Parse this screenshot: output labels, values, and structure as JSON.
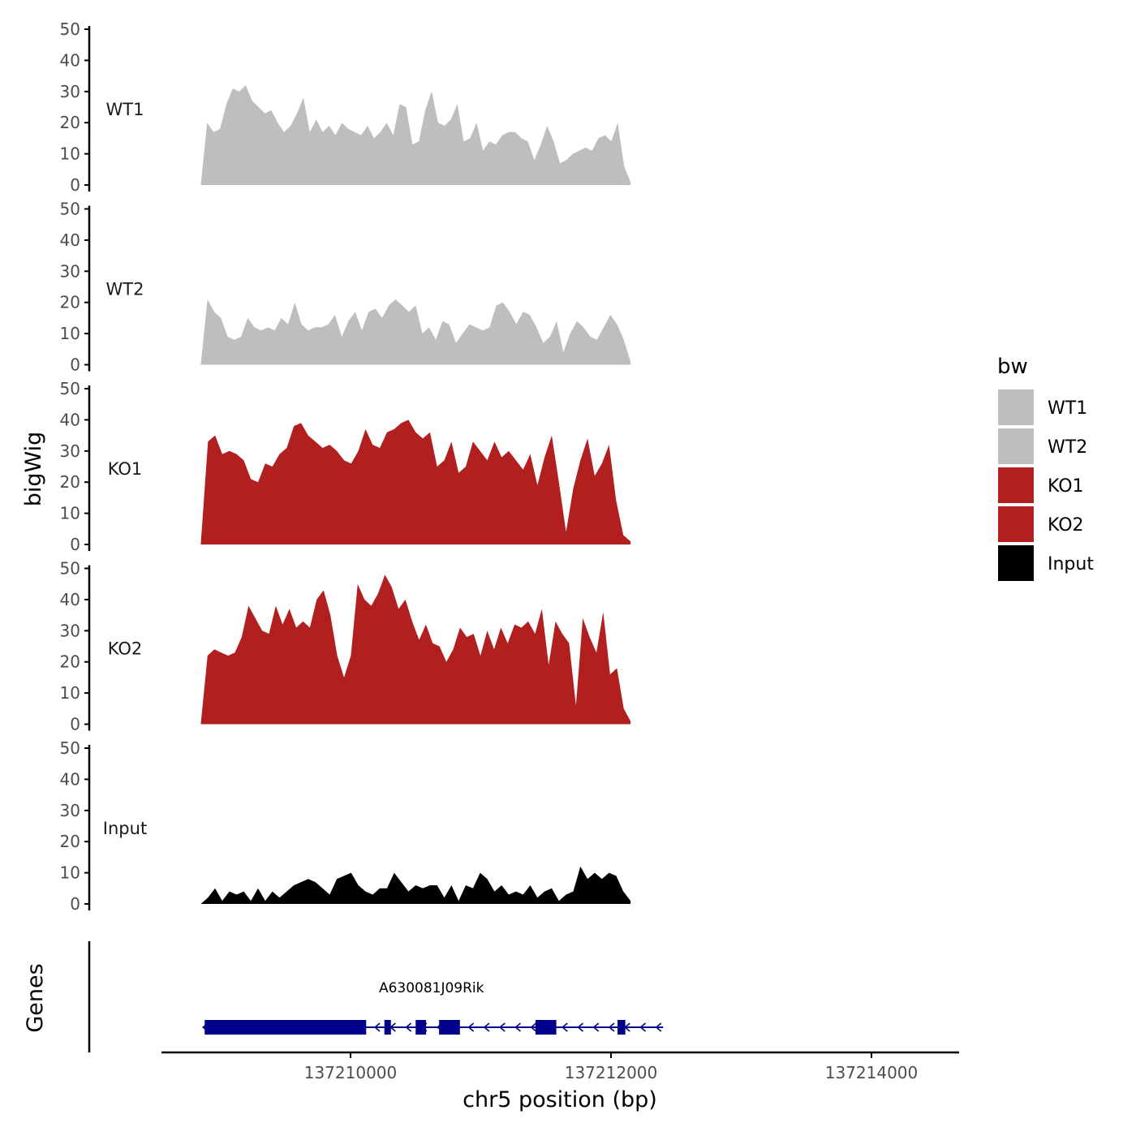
{
  "chart_data": {
    "type": "area",
    "ylabel": "bigWig",
    "genes_label": "Genes",
    "xlabel": "chr5 position (bp)",
    "x_ticks": [
      137210000,
      137212000,
      137214000
    ],
    "xlim": [
      137208500,
      137214500
    ],
    "ylim": [
      0,
      50
    ],
    "y_ticks": [
      0,
      10,
      20,
      30,
      40,
      50
    ],
    "x_range_data": [
      137208850,
      137212150
    ],
    "legend": {
      "title": "bw",
      "position": "right",
      "entries": [
        {
          "label": "WT1",
          "color": "#bebebe"
        },
        {
          "label": "WT2",
          "color": "#bebebe"
        },
        {
          "label": "KO1",
          "color": "#b21f1f"
        },
        {
          "label": "KO2",
          "color": "#b21f1f"
        },
        {
          "label": "Input",
          "color": "#000000"
        }
      ]
    },
    "series": [
      {
        "name": "WT1",
        "color": "#bebebe",
        "values": [
          0,
          20,
          17,
          18,
          26,
          31,
          30,
          32,
          27,
          25,
          23,
          24,
          20,
          17,
          19,
          23,
          28,
          17,
          21,
          17,
          19,
          16,
          20,
          18,
          17,
          16,
          19,
          15,
          17,
          20,
          16,
          26,
          25,
          13,
          14,
          24,
          30,
          20,
          19,
          21,
          26,
          14,
          15,
          20,
          11,
          14,
          13,
          16,
          17,
          17,
          15,
          14,
          8,
          13,
          19,
          14,
          7,
          8,
          10,
          11,
          12,
          11,
          15,
          16,
          14,
          20,
          6,
          1
        ]
      },
      {
        "name": "WT2",
        "color": "#bebebe",
        "values": [
          0,
          21,
          17,
          15,
          9,
          8,
          9,
          15,
          12,
          11,
          12,
          11,
          15,
          13,
          20,
          13,
          11,
          12,
          12,
          13,
          16,
          9,
          14,
          17,
          11,
          17,
          18,
          15,
          19,
          21,
          19,
          17,
          19,
          10,
          12,
          8,
          14,
          13,
          7,
          10,
          13,
          12,
          11,
          12,
          19,
          20,
          17,
          13,
          17,
          16,
          12,
          7,
          9,
          14,
          4,
          10,
          14,
          12,
          9,
          8,
          12,
          16,
          13,
          8,
          1
        ]
      },
      {
        "name": "KO1",
        "color": "#b21f1f",
        "values": [
          0,
          33,
          35,
          29,
          30,
          29,
          27,
          21,
          20,
          26,
          25,
          29,
          31,
          38,
          39,
          35,
          33,
          31,
          32,
          30,
          27,
          26,
          30,
          37,
          32,
          31,
          36,
          37,
          39,
          40,
          36,
          34,
          36,
          25,
          27,
          33,
          23,
          25,
          33,
          30,
          27,
          33,
          28,
          30,
          27,
          24,
          29,
          19,
          28,
          35,
          20,
          4,
          18,
          27,
          34,
          22,
          26,
          32,
          14,
          3,
          1
        ]
      },
      {
        "name": "KO2",
        "color": "#b21f1f",
        "values": [
          0,
          22,
          24,
          23,
          22,
          23,
          28,
          38,
          34,
          30,
          29,
          38,
          32,
          37,
          31,
          33,
          31,
          40,
          43,
          35,
          22,
          15,
          22,
          45,
          40,
          38,
          42,
          48,
          44,
          37,
          40,
          33,
          27,
          32,
          26,
          25,
          20,
          24,
          31,
          28,
          29,
          22,
          30,
          24,
          31,
          26,
          32,
          31,
          33,
          29,
          37,
          19,
          33,
          29,
          26,
          6,
          34,
          28,
          23,
          36,
          16,
          18,
          5,
          1
        ]
      },
      {
        "name": "Input",
        "color": "#000000",
        "values": [
          0,
          2,
          5,
          1,
          4,
          3,
          4,
          1,
          5,
          1,
          4,
          2,
          4,
          6,
          7,
          8,
          7,
          5,
          3,
          8,
          9,
          10,
          6,
          4,
          3,
          5,
          5,
          10,
          7,
          4,
          6,
          5,
          6,
          6,
          2,
          6,
          1,
          6,
          5,
          10,
          8,
          4,
          6,
          3,
          4,
          3,
          6,
          2,
          4,
          5,
          1,
          3,
          4,
          12,
          8,
          10,
          8,
          10,
          9,
          4,
          1
        ]
      }
    ],
    "gene_track": {
      "name": "A630081J09Rik",
      "color": "#00008b",
      "strand": "-",
      "start": 137208880,
      "end": 137212400,
      "exons": [
        [
          137208880,
          137210120
        ],
        [
          137210260,
          137210310
        ],
        [
          137210500,
          137210580
        ],
        [
          137210680,
          137210840
        ],
        [
          137211420,
          137211580
        ],
        [
          137212050,
          137212110
        ]
      ]
    }
  }
}
